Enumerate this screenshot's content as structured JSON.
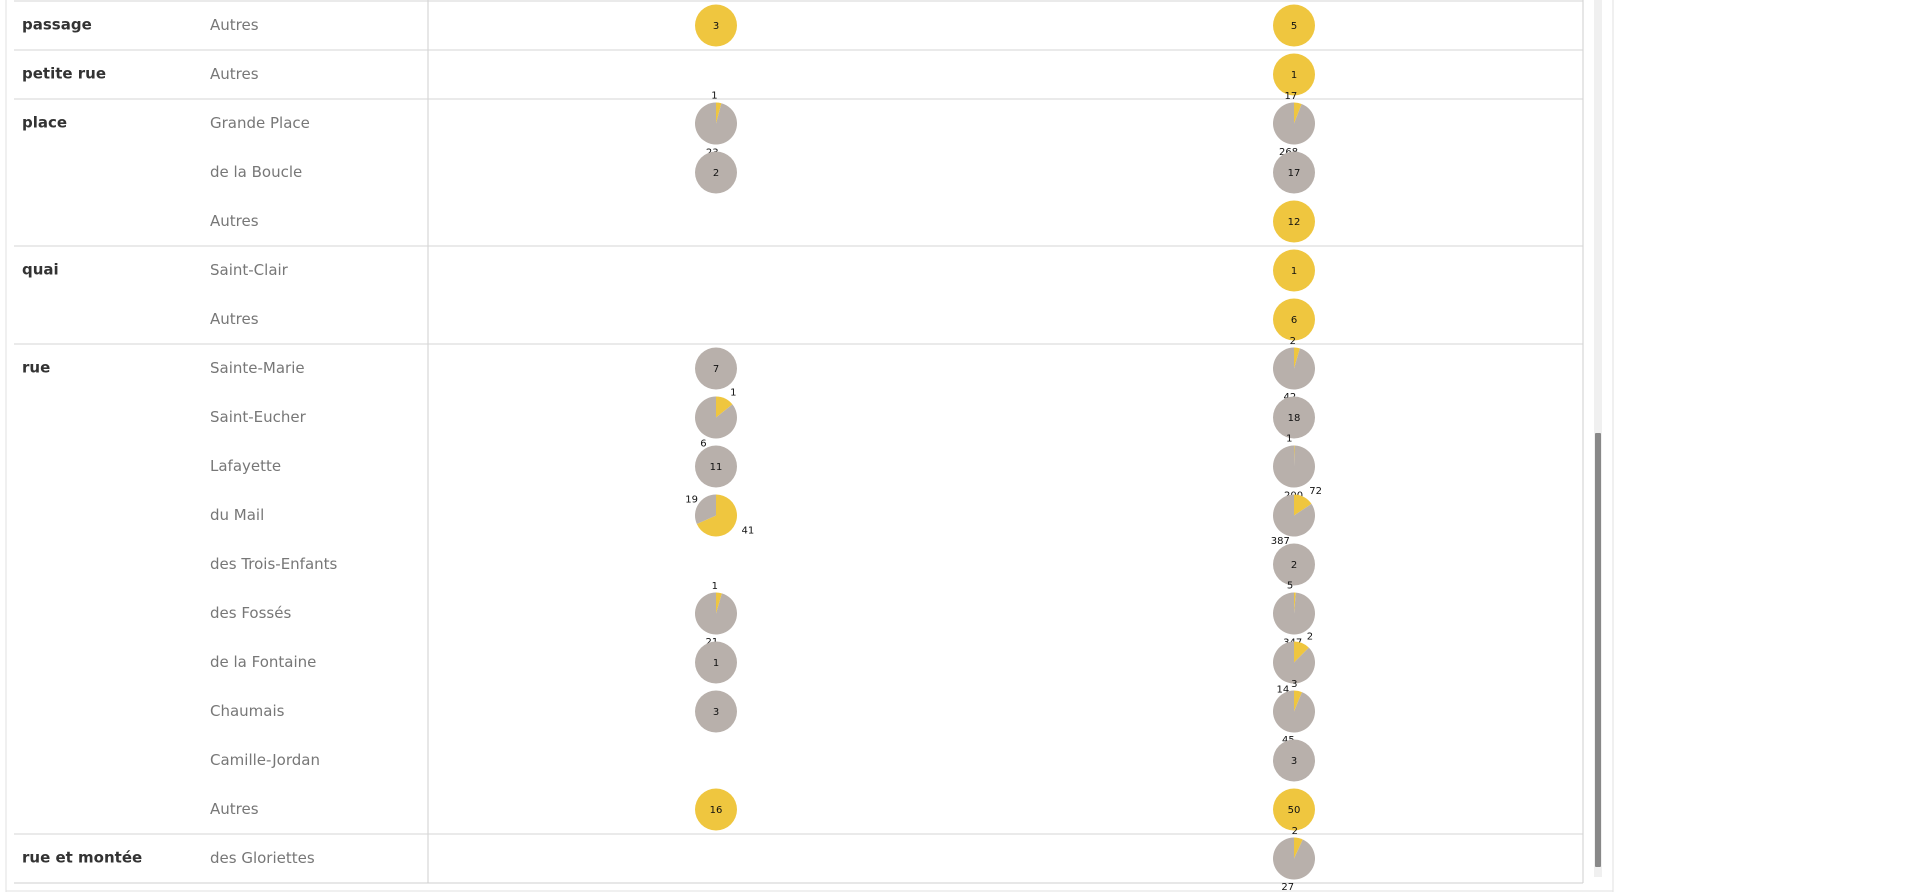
{
  "colors": {
    "positive": "#efc63f",
    "negative": "#b8b0ab",
    "divider": "#d4d4d4"
  },
  "chart_data": {
    "type": "pie",
    "columns": [
      "left",
      "right"
    ],
    "groups": [
      {
        "name": "passage",
        "rows": [
          {
            "name": "Autres",
            "pies": [
              {
                "yellow": 3,
                "grey": 0,
                "label": "3"
              },
              {
                "yellow": 5,
                "grey": 0,
                "label": "5"
              }
            ]
          }
        ]
      },
      {
        "name": "petite rue",
        "rows": [
          {
            "name": "Autres",
            "pies": [
              null,
              {
                "yellow": 1,
                "grey": 0,
                "label": "1"
              }
            ]
          }
        ]
      },
      {
        "name": "place",
        "rows": [
          {
            "name": "Grande Place",
            "pies": [
              {
                "yellow": 1,
                "grey": 23,
                "yellowLabel": "1",
                "greyLabel": "23"
              },
              {
                "yellow": 17,
                "grey": 268,
                "yellowLabel": "17",
                "greyLabel": "268"
              }
            ]
          },
          {
            "name": "de la Boucle",
            "pies": [
              {
                "yellow": 0,
                "grey": 2,
                "label": "2"
              },
              {
                "yellow": 0,
                "grey": 17,
                "label": "17"
              }
            ]
          },
          {
            "name": "Autres",
            "pies": [
              null,
              {
                "yellow": 12,
                "grey": 0,
                "label": "12"
              }
            ]
          }
        ]
      },
      {
        "name": "quai",
        "rows": [
          {
            "name": "Saint-Clair",
            "pies": [
              null,
              {
                "yellow": 1,
                "grey": 0,
                "label": "1"
              }
            ]
          },
          {
            "name": "Autres",
            "pies": [
              null,
              {
                "yellow": 6,
                "grey": 0,
                "label": "6"
              }
            ]
          }
        ]
      },
      {
        "name": "rue",
        "rows": [
          {
            "name": "Sainte-Marie",
            "pies": [
              {
                "yellow": 0,
                "grey": 7,
                "label": "7"
              },
              {
                "yellow": 2,
                "grey": 42,
                "yellowLabel": "2",
                "greyLabel": "42"
              }
            ]
          },
          {
            "name": "Saint-Eucher",
            "pies": [
              {
                "yellow": 1,
                "grey": 6,
                "yellowLabel": "1",
                "greyLabel": "6"
              },
              {
                "yellow": 0,
                "grey": 18,
                "label": "18"
              }
            ]
          },
          {
            "name": "Lafayette",
            "pies": [
              {
                "yellow": 0,
                "grey": 11,
                "label": "11"
              },
              {
                "yellow": 1,
                "grey": 200,
                "yellowLabel": "1",
                "greyLabel": "200"
              }
            ]
          },
          {
            "name": "du Mail",
            "pies": [
              {
                "yellow": 41,
                "grey": 19,
                "yellowLabel": "41",
                "greyLabel": "19"
              },
              {
                "yellow": 72,
                "grey": 387,
                "yellowLabel": "72",
                "greyLabel": "387"
              }
            ]
          },
          {
            "name": "des Trois-Enfants",
            "pies": [
              null,
              {
                "yellow": 0,
                "grey": 2,
                "label": "2"
              }
            ]
          },
          {
            "name": "des Fossés",
            "pies": [
              {
                "yellow": 1,
                "grey": 21,
                "yellowLabel": "1",
                "greyLabel": "21"
              },
              {
                "yellow": 5,
                "grey": 347,
                "yellowLabel": "5",
                "greyLabel": "347"
              }
            ]
          },
          {
            "name": "de la Fontaine",
            "pies": [
              {
                "yellow": 0,
                "grey": 1,
                "label": "1"
              },
              {
                "yellow": 2,
                "grey": 14,
                "yellowLabel": "2",
                "greyLabel": "14"
              }
            ]
          },
          {
            "name": "Chaumais",
            "pies": [
              {
                "yellow": 0,
                "grey": 3,
                "label": "3"
              },
              {
                "yellow": 3,
                "grey": 45,
                "yellowLabel": "3",
                "greyLabel": "45"
              }
            ]
          },
          {
            "name": "Camille-Jordan",
            "pies": [
              null,
              {
                "yellow": 0,
                "grey": 3,
                "label": "3"
              }
            ]
          },
          {
            "name": "Autres",
            "pies": [
              {
                "yellow": 16,
                "grey": 0,
                "label": "16"
              },
              {
                "yellow": 50,
                "grey": 0,
                "label": "50"
              }
            ]
          }
        ]
      },
      {
        "name": "rue et montée",
        "rows": [
          {
            "name": "des Gloriettes",
            "pies": [
              null,
              {
                "yellow": 2,
                "grey": 27,
                "yellowLabel": "2",
                "greyLabel": "27"
              }
            ]
          }
        ]
      }
    ]
  }
}
